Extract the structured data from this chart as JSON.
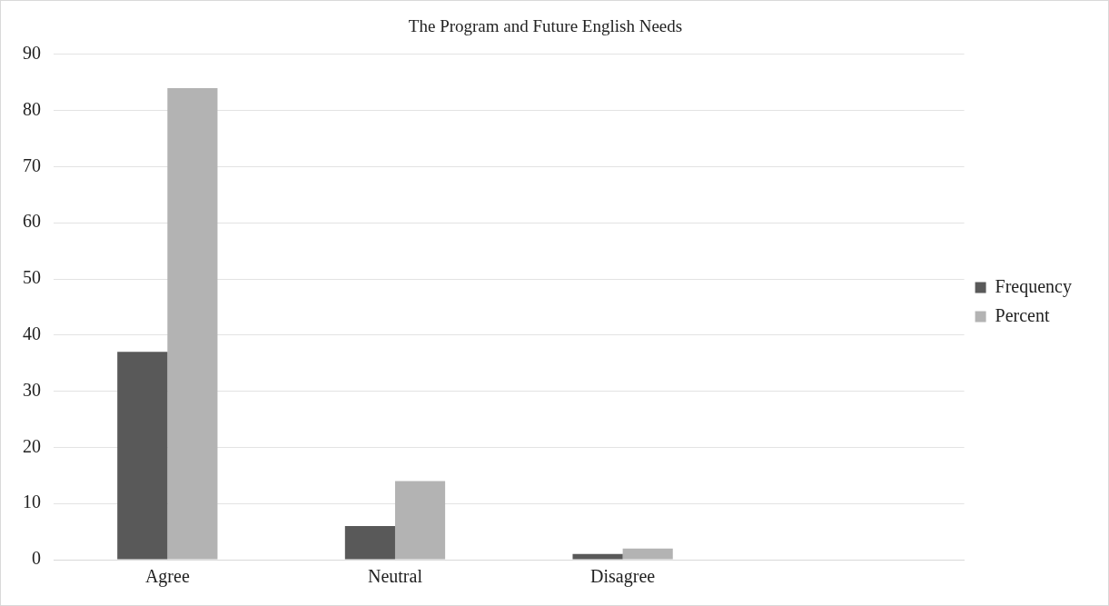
{
  "chart_data": {
    "type": "bar",
    "title": "The Program and Future English Needs",
    "categories": [
      "Agree",
      "Neutral",
      "Disagree",
      null
    ],
    "series": [
      {
        "name": "Frequency",
        "color": "#595959",
        "values": [
          37,
          6,
          1,
          null
        ]
      },
      {
        "name": "Percent",
        "color": "#b3b3b3",
        "values": [
          84,
          14,
          2,
          null
        ]
      }
    ],
    "ylim": [
      0,
      90
    ],
    "yticks": [
      0,
      10,
      20,
      30,
      40,
      50,
      60,
      70,
      80,
      90
    ],
    "grid": "y",
    "legend": "right"
  }
}
